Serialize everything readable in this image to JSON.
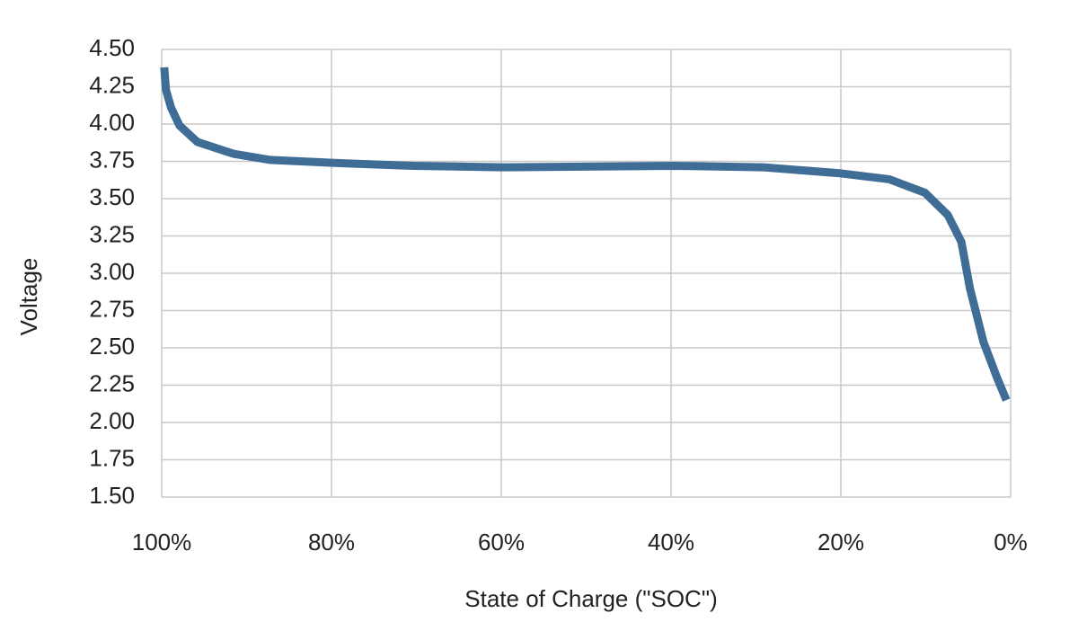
{
  "chart_data": {
    "type": "line",
    "x_label": "State of Charge (\"SOC\")",
    "y_label": "Voltage",
    "x": [
      99.7,
      99.5,
      98.9,
      97.9,
      95.8,
      91.5,
      87.3,
      79.9,
      70.4,
      59.8,
      39.7,
      29.1,
      20.1,
      14.3,
      10.1,
      7.4,
      5.8,
      4.8,
      3.2,
      1.6,
      0.5
    ],
    "series": [
      {
        "name": "Voltage",
        "color": "#3f6d96",
        "values": [
          4.38,
          4.23,
          4.11,
          3.99,
          3.88,
          3.8,
          3.76,
          3.74,
          3.72,
          3.71,
          3.72,
          3.71,
          3.67,
          3.63,
          3.54,
          3.39,
          3.21,
          2.9,
          2.54,
          2.3,
          2.15
        ]
      }
    ],
    "xlim": [
      100,
      0
    ],
    "xticks": [
      {
        "value": 100,
        "label": "100%"
      },
      {
        "value": 80,
        "label": "80%"
      },
      {
        "value": 60,
        "label": "60%"
      },
      {
        "value": 40,
        "label": "40%"
      },
      {
        "value": 20,
        "label": "20%"
      },
      {
        "value": 0,
        "label": "0%"
      }
    ],
    "ylim": [
      1.5,
      4.5
    ],
    "yticks": [
      {
        "value": 1.5,
        "label": "1.50"
      },
      {
        "value": 1.75,
        "label": "1.75"
      },
      {
        "value": 2,
        "label": "2.00"
      },
      {
        "value": 2.25,
        "label": "2.25"
      },
      {
        "value": 2.5,
        "label": "2.50"
      },
      {
        "value": 2.75,
        "label": "2.75"
      },
      {
        "value": 3,
        "label": "3.00"
      },
      {
        "value": 3.25,
        "label": "3.25"
      },
      {
        "value": 3.5,
        "label": "3.50"
      },
      {
        "value": 3.75,
        "label": "3.75"
      },
      {
        "value": 4,
        "label": "4.00"
      },
      {
        "value": 4.25,
        "label": "4.25"
      },
      {
        "value": 4.5,
        "label": "4.50"
      }
    ],
    "grid": true
  }
}
